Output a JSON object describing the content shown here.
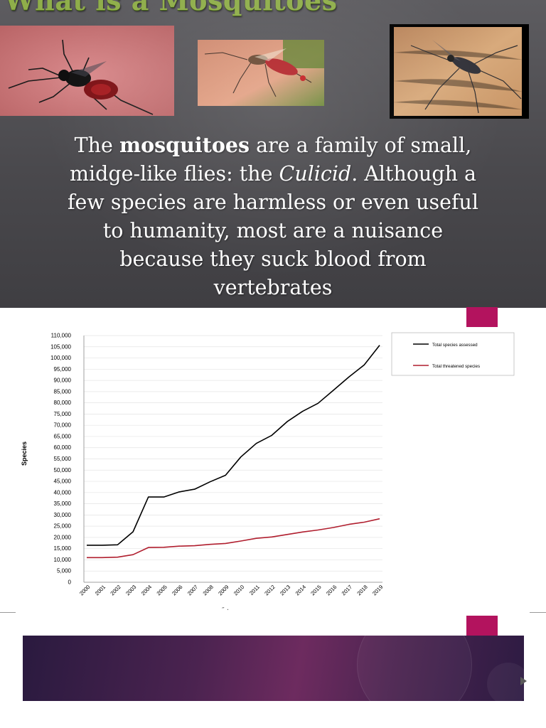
{
  "slide": {
    "title": "What is a Mosquitoes",
    "paragraph": {
      "line1_pre": "The ",
      "line1_bold": "mosquitoes",
      "line1_post": " are a family of small,",
      "line2_pre": "midge-like flies: the ",
      "line2_italic": "Culicid",
      "line2_post": ". Although a",
      "line3": "few species are harmless or even useful",
      "line4": "to humanity, most are a nuisance",
      "line5": "because they suck blood from",
      "line6": "vertebrates"
    },
    "photos": [
      "mosquito-photo-1",
      "mosquito-photo-2",
      "mosquito-photo-3"
    ]
  },
  "colors": {
    "title_green": "#8fae4a",
    "accent_magenta": "#b3135e",
    "series_assessed": "#000000",
    "series_threatened": "#b01e2e"
  },
  "stray_mark": "″ ·",
  "chart_data": {
    "type": "line",
    "ylabel": "Species",
    "ylim": [
      0,
      110000
    ],
    "ytick_step": 5000,
    "grid": "horizontal",
    "legend_position": "top-right",
    "x": [
      "2000",
      "2001",
      "2002",
      "2003",
      "2004",
      "2005",
      "2006",
      "2007",
      "2008",
      "2009",
      "2010",
      "2011",
      "2012",
      "2013",
      "2014",
      "2015",
      "2016",
      "2017",
      "2018",
      "2019"
    ],
    "series": [
      {
        "name": "Total species assessed",
        "color": "#000000",
        "values": [
          16500,
          16500,
          16700,
          22500,
          38000,
          38000,
          40300,
          41500,
          44800,
          47700,
          55900,
          61900,
          65500,
          71600,
          76200,
          79800,
          85600,
          91500,
          96900,
          105700
        ]
      },
      {
        "name": "Total threatened species",
        "color": "#b01e2e",
        "values": [
          11000,
          11000,
          11200,
          12300,
          15500,
          15600,
          16100,
          16300,
          16900,
          17300,
          18400,
          19600,
          20200,
          21300,
          22400,
          23300,
          24400,
          25800,
          26800,
          28300
        ]
      }
    ]
  }
}
